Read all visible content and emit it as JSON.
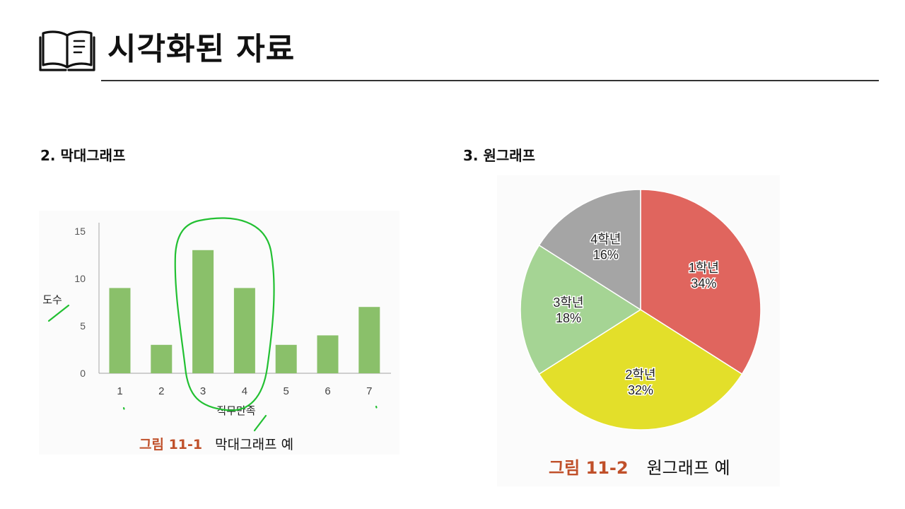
{
  "header": {
    "title": "시각화된 자료",
    "icon": "open-book-icon"
  },
  "sections": {
    "bar": {
      "heading": "2. 막대그래프"
    },
    "pie": {
      "heading": "3. 원그래프"
    }
  },
  "captions": {
    "bar": {
      "number": "그림 11-1",
      "text": "막대그래프 예"
    },
    "pie": {
      "number": "그림 11-2",
      "text": "원그래프 예"
    }
  },
  "colors": {
    "bar_fill": "#8ac06a",
    "annotation_ink": "#22c032",
    "caption_number": "#c0502a",
    "pie_1": "#e0655e",
    "pie_2": "#e3df2a",
    "pie_3": "#a5d494",
    "pie_4": "#a5a5a5"
  },
  "chart_data": [
    {
      "type": "bar",
      "categories": [
        "1",
        "2",
        "3",
        "4",
        "5",
        "6",
        "7"
      ],
      "values": [
        9,
        3,
        13,
        9,
        3,
        4,
        7
      ],
      "xlabel": "직무만족",
      "ylabel": "도수",
      "ylim": [
        0,
        15
      ],
      "yticks": [
        "0",
        "5",
        "10",
        "15"
      ],
      "grid": false,
      "legend": "none"
    },
    {
      "type": "pie",
      "slices": [
        {
          "label": "1학년",
          "value": 34,
          "pct": "34%"
        },
        {
          "label": "2학년",
          "value": 32,
          "pct": "32%"
        },
        {
          "label": "3학년",
          "value": 18,
          "pct": "18%"
        },
        {
          "label": "4학년",
          "value": 16,
          "pct": "16%"
        }
      ],
      "start": "12 o'clock",
      "direction": "clockwise",
      "legend": "none"
    }
  ]
}
